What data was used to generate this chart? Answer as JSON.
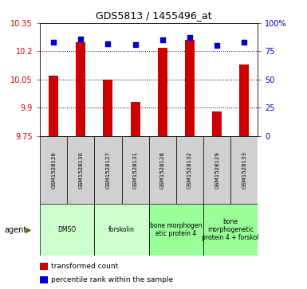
{
  "title": "GDS5813 / 1455496_at",
  "samples": [
    "GSM1528126",
    "GSM1528130",
    "GSM1528127",
    "GSM1528131",
    "GSM1528128",
    "GSM1528132",
    "GSM1528129",
    "GSM1528133"
  ],
  "bar_values": [
    10.07,
    10.25,
    10.05,
    9.93,
    10.22,
    10.26,
    9.88,
    10.13
  ],
  "percentile_values": [
    83,
    86,
    82,
    81,
    85,
    87,
    80,
    83
  ],
  "ymin": 9.75,
  "ymax": 10.35,
  "yticks": [
    9.75,
    9.9,
    10.05,
    10.2,
    10.35
  ],
  "right_yticks": [
    0,
    25,
    50,
    75,
    100
  ],
  "bar_color": "#cc0000",
  "dot_color": "#0000cc",
  "groups": [
    {
      "label": "DMSO",
      "start": 0,
      "end": 2,
      "color": "#ccffcc"
    },
    {
      "label": "forskolin",
      "start": 2,
      "end": 4,
      "color": "#ccffcc"
    },
    {
      "label": "bone morphogen\netic protein 4",
      "start": 4,
      "end": 6,
      "color": "#99ff99"
    },
    {
      "label": "bone\nmorphogenetic\nprotein 4 + forskol",
      "start": 6,
      "end": 8,
      "color": "#99ff99"
    }
  ],
  "left_label_color": "#cc0000",
  "right_label_color": "#0000cc",
  "grid_color": "#000000",
  "legend": [
    {
      "label": "transformed count",
      "color": "#cc0000"
    },
    {
      "label": "percentile rank within the sample",
      "color": "#0000cc"
    }
  ]
}
